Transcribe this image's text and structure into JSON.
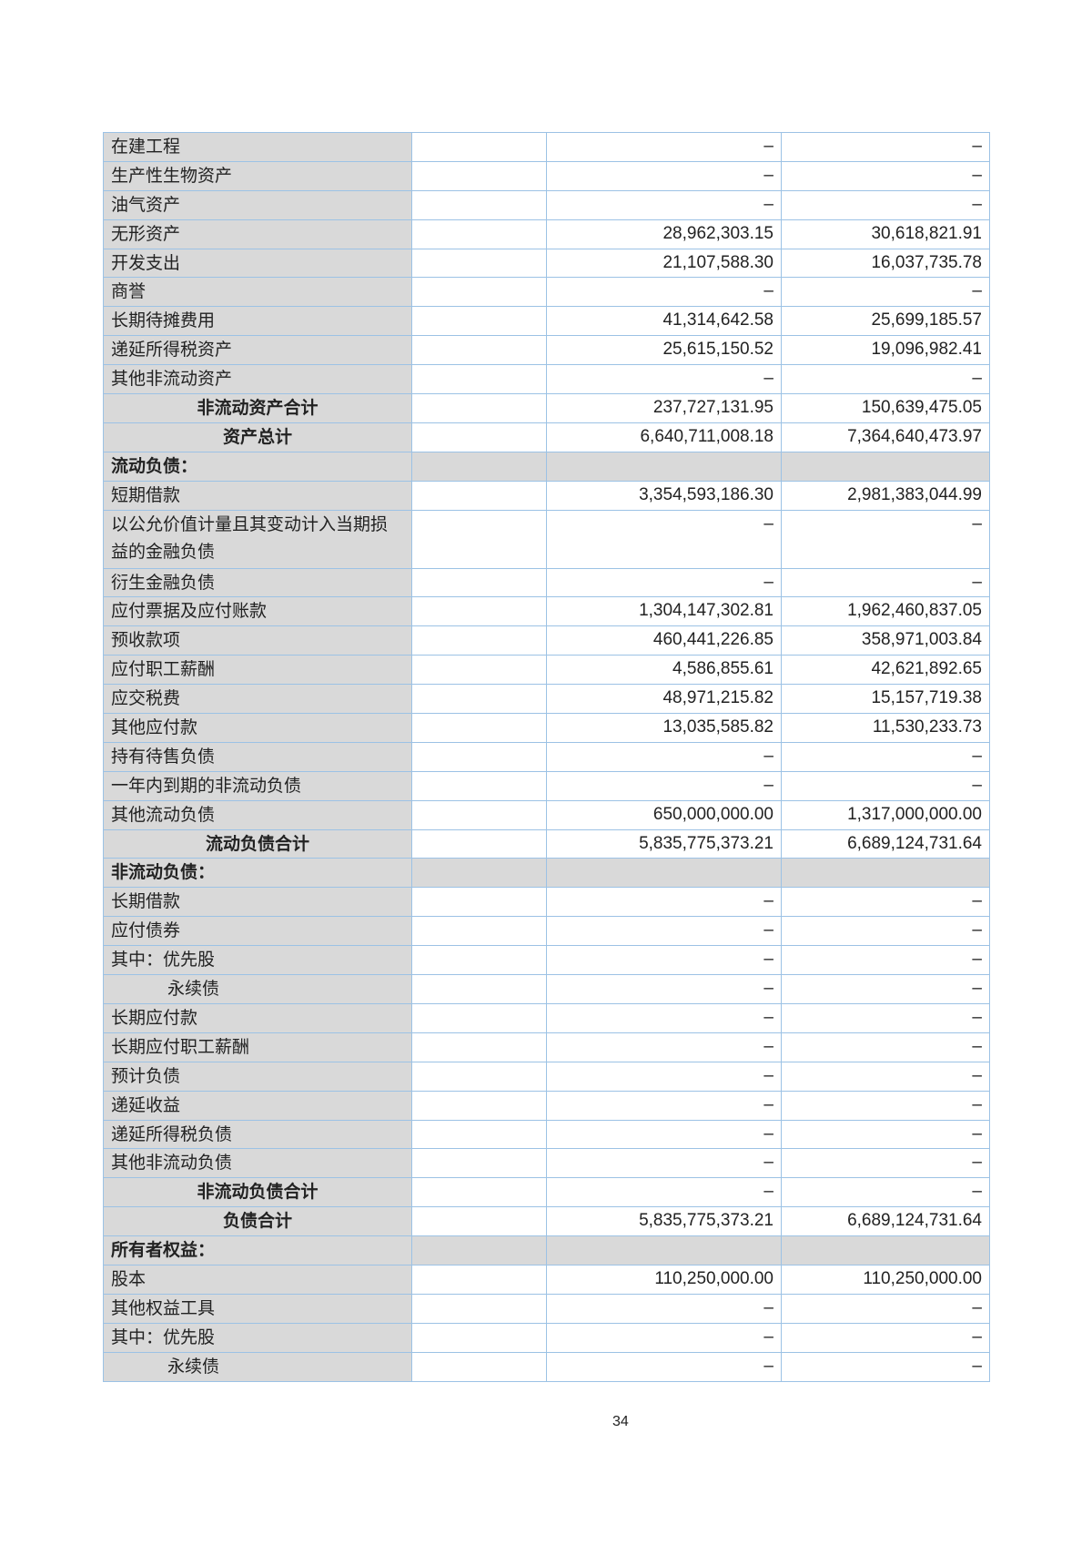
{
  "rows": [
    {
      "label": "在建工程",
      "cur": "–",
      "prev": "–"
    },
    {
      "label": "生产性生物资产",
      "cur": "–",
      "prev": "–"
    },
    {
      "label": "油气资产",
      "cur": "–",
      "prev": "–"
    },
    {
      "label": "无形资产",
      "cur": "28,962,303.15",
      "prev": "30,618,821.91"
    },
    {
      "label": "开发支出",
      "cur": "21,107,588.30",
      "prev": "16,037,735.78"
    },
    {
      "label": "商誉",
      "cur": "–",
      "prev": "–"
    },
    {
      "label": "长期待摊费用",
      "cur": "41,314,642.58",
      "prev": "25,699,185.57"
    },
    {
      "label": "递延所得税资产",
      "cur": "25,615,150.52",
      "prev": "19,096,982.41"
    },
    {
      "label": "其他非流动资产",
      "cur": "–",
      "prev": "–"
    },
    {
      "label": "非流动资产合计",
      "cur": "237,727,131.95",
      "prev": "150,639,475.05",
      "type": "total"
    },
    {
      "label": "资产总计",
      "cur": "6,640,711,008.18",
      "prev": "7,364,640,473.97",
      "type": "total"
    },
    {
      "label": "流动负债：",
      "cur": "",
      "prev": "",
      "type": "section"
    },
    {
      "label": "短期借款",
      "cur": "3,354,593,186.30",
      "prev": "2,981,383,044.99"
    },
    {
      "label": "以公允价值计量且其变动计入当期损益的金融负债",
      "cur": "–",
      "prev": "–",
      "type": "dbl"
    },
    {
      "label": "衍生金融负债",
      "cur": "–",
      "prev": "–"
    },
    {
      "label": "应付票据及应付账款",
      "cur": "1,304,147,302.81",
      "prev": "1,962,460,837.05"
    },
    {
      "label": "预收款项",
      "cur": "460,441,226.85",
      "prev": "358,971,003.84"
    },
    {
      "label": "应付职工薪酬",
      "cur": "4,586,855.61",
      "prev": "42,621,892.65"
    },
    {
      "label": "应交税费",
      "cur": "48,971,215.82",
      "prev": "15,157,719.38"
    },
    {
      "label": "其他应付款",
      "cur": "13,035,585.82",
      "prev": "11,530,233.73"
    },
    {
      "label": "持有待售负债",
      "cur": "–",
      "prev": "–"
    },
    {
      "label": "一年内到期的非流动负债",
      "cur": "–",
      "prev": "–"
    },
    {
      "label": "其他流动负债",
      "cur": "650,000,000.00",
      "prev": "1,317,000,000.00"
    },
    {
      "label": "流动负债合计",
      "cur": "5,835,775,373.21",
      "prev": "6,689,124,731.64",
      "type": "total"
    },
    {
      "label": "非流动负债：",
      "cur": "",
      "prev": "",
      "type": "section"
    },
    {
      "label": "长期借款",
      "cur": "–",
      "prev": "–"
    },
    {
      "label": "应付债券",
      "cur": "–",
      "prev": "–"
    },
    {
      "label": "其中：优先股",
      "cur": "–",
      "prev": "–"
    },
    {
      "label": "永续债",
      "cur": "–",
      "prev": "–",
      "type": "indent"
    },
    {
      "label": "长期应付款",
      "cur": "–",
      "prev": "–"
    },
    {
      "label": "长期应付职工薪酬",
      "cur": "–",
      "prev": "–"
    },
    {
      "label": "预计负债",
      "cur": "–",
      "prev": "–"
    },
    {
      "label": "递延收益",
      "cur": "–",
      "prev": "–"
    },
    {
      "label": "递延所得税负债",
      "cur": "–",
      "prev": "–"
    },
    {
      "label": "其他非流动负债",
      "cur": "–",
      "prev": "–"
    },
    {
      "label": "非流动负债合计",
      "cur": "–",
      "prev": "–",
      "type": "total"
    },
    {
      "label": "负债合计",
      "cur": "5,835,775,373.21",
      "prev": "6,689,124,731.64",
      "type": "total"
    },
    {
      "label": "所有者权益：",
      "cur": "",
      "prev": "",
      "type": "section"
    },
    {
      "label": "股本",
      "cur": "110,250,000.00",
      "prev": "110,250,000.00"
    },
    {
      "label": "其他权益工具",
      "cur": "–",
      "prev": "–"
    },
    {
      "label": "其中：优先股",
      "cur": "–",
      "prev": "–"
    },
    {
      "label": "永续债",
      "cur": "–",
      "prev": "–",
      "type": "indent"
    }
  ],
  "page_number": "34"
}
